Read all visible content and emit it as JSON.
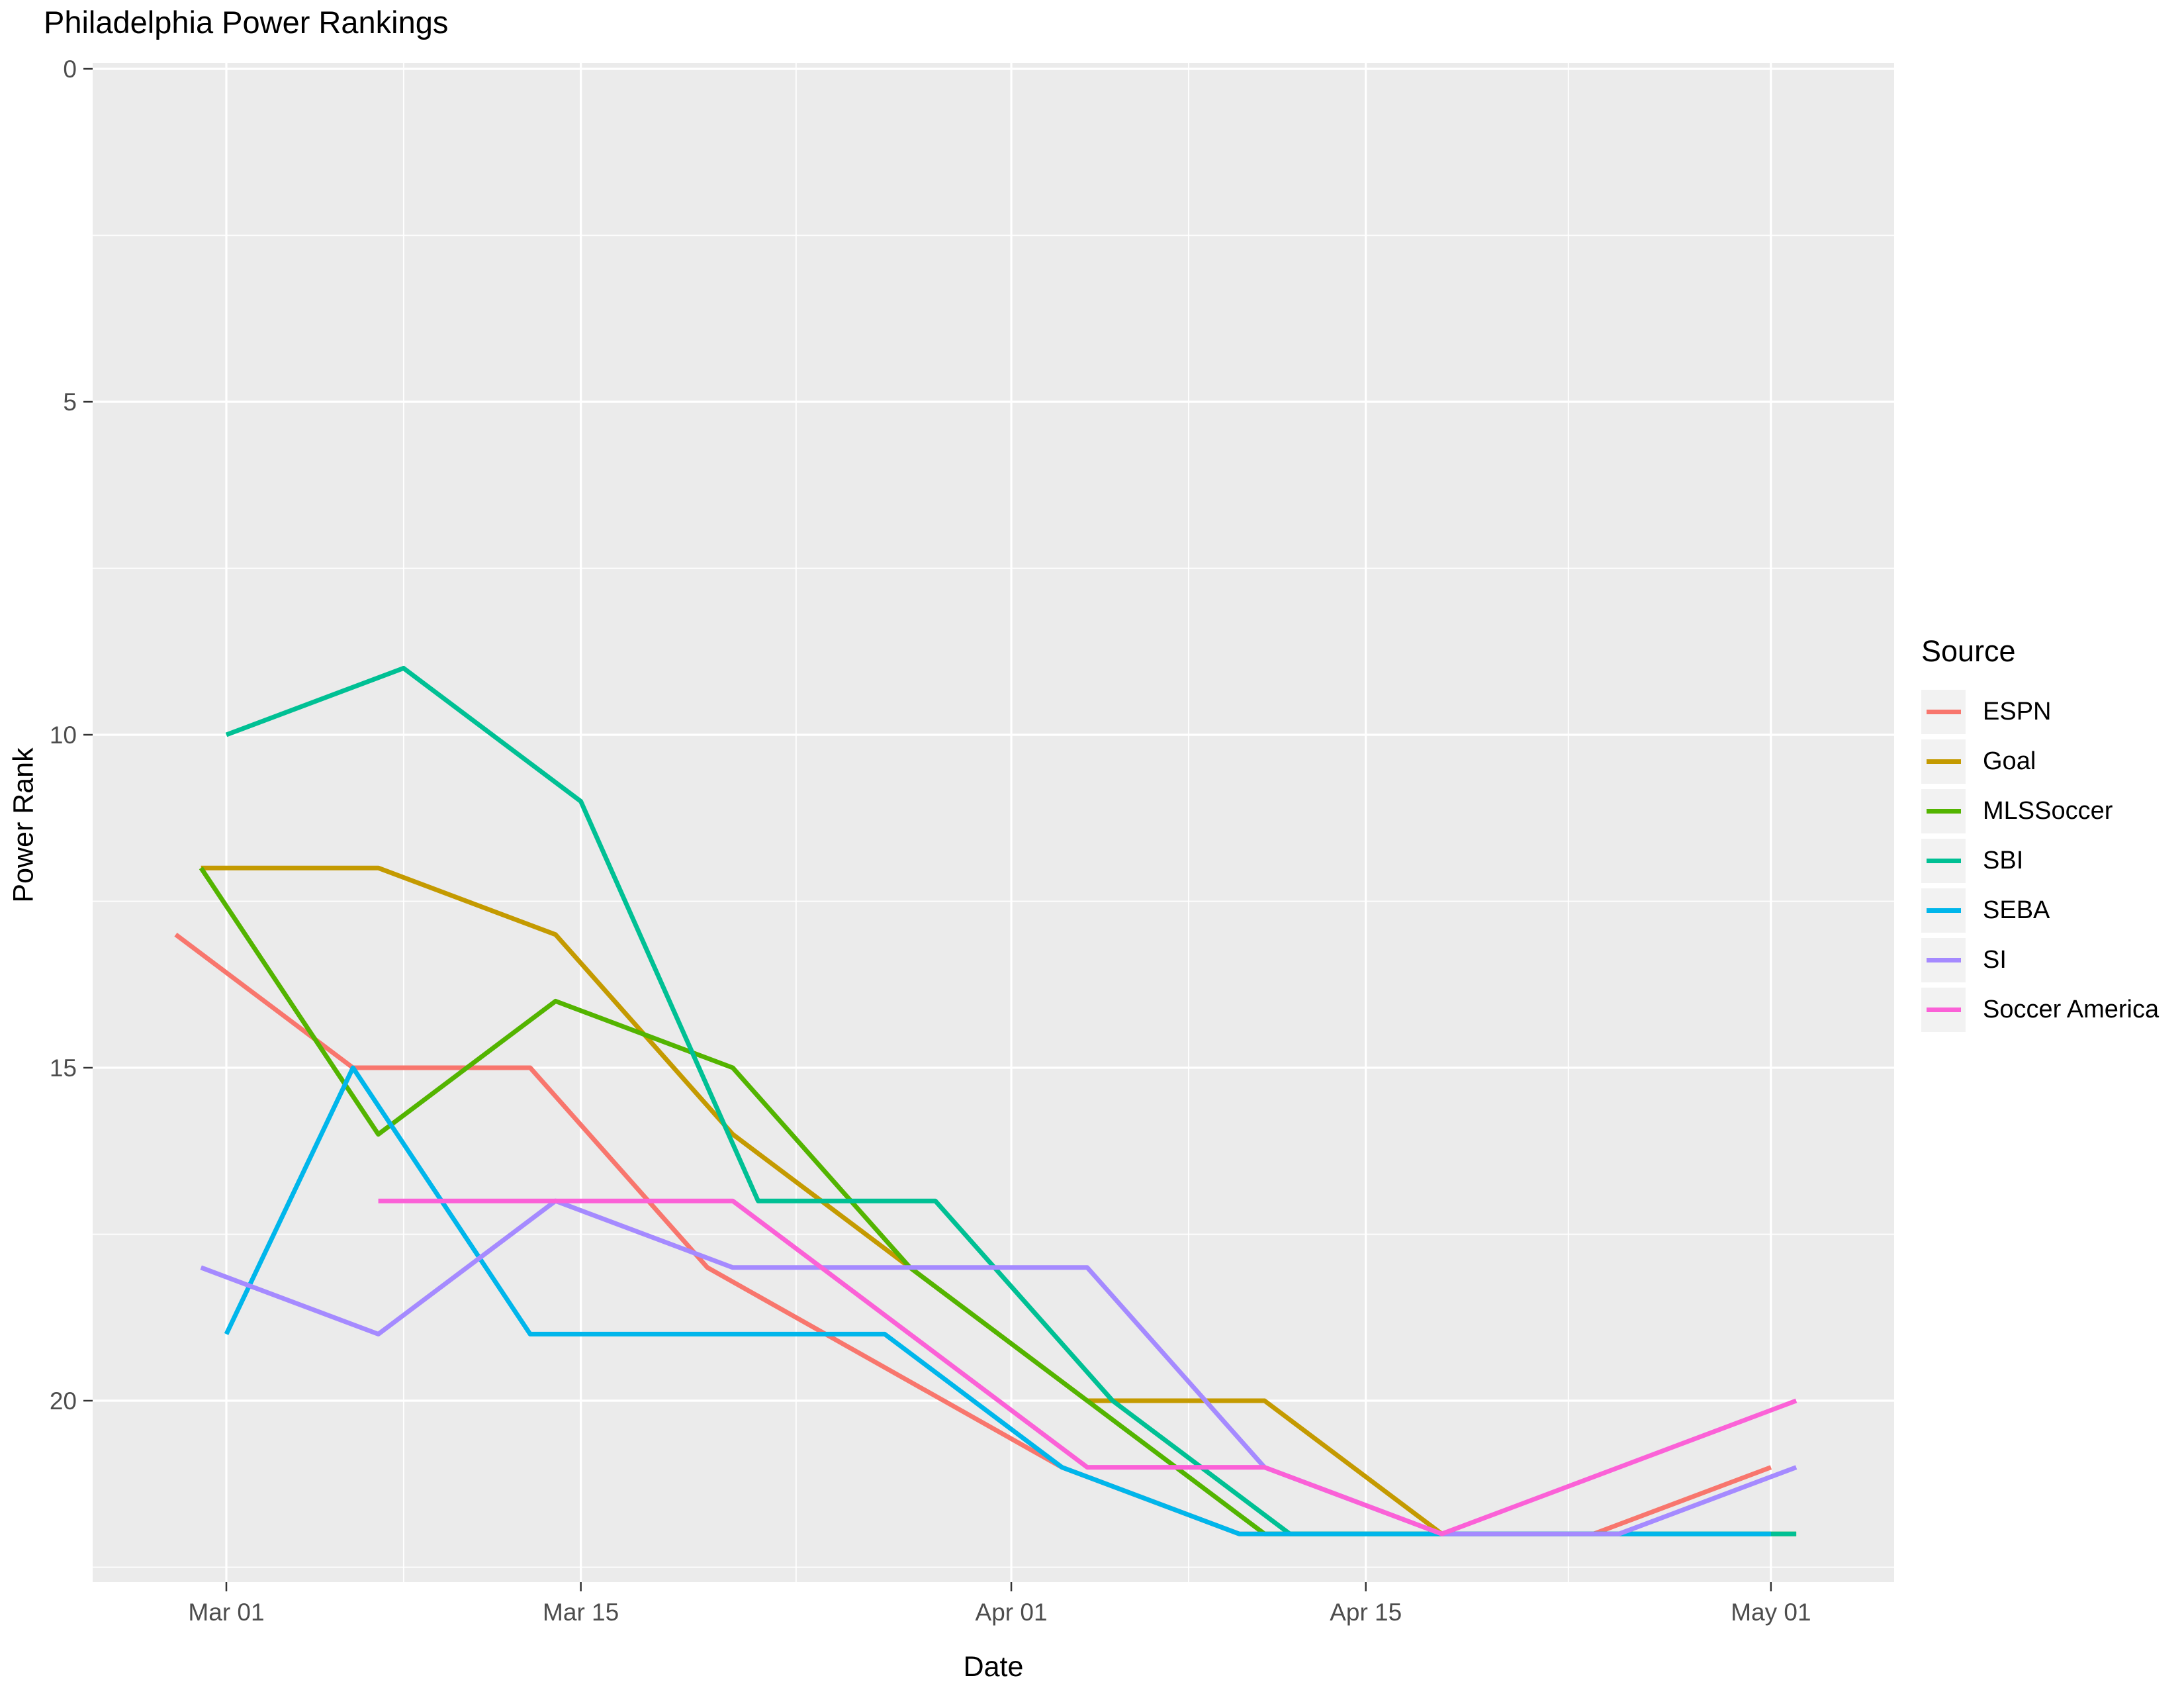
{
  "chart_data": {
    "type": "line",
    "title": "Philadelphia Power Rankings",
    "xlabel": "Date",
    "ylabel": "Power Rank",
    "grid": "on",
    "legend": {
      "title": "Source",
      "position": "right"
    },
    "x_axis": {
      "tick_labels": [
        "Mar 01",
        "Mar 15",
        "Apr 01",
        "Apr 15",
        "May 01"
      ],
      "tick_days": [
        0,
        14,
        31,
        45,
        61
      ],
      "minor_grid_days": [
        7,
        22.5,
        38,
        53
      ]
    },
    "y_axis": {
      "tick_labels": [
        "0",
        "5",
        "10",
        "15",
        "20"
      ],
      "tick_values": [
        0,
        5,
        10,
        15,
        20
      ],
      "minor_grid_values": [
        2.5,
        7.5,
        12.5,
        17.5,
        22.5
      ],
      "inverted": true,
      "data_range": [
        9,
        22
      ]
    },
    "series": [
      {
        "name": "ESPN",
        "color": "#F8766D",
        "points": [
          {
            "date": "Feb 27",
            "day": -2,
            "rank": 13
          },
          {
            "date": "Mar 06",
            "day": 5,
            "rank": 15
          },
          {
            "date": "Mar 13",
            "day": 12,
            "rank": 15
          },
          {
            "date": "Mar 20",
            "day": 19,
            "rank": 18
          },
          {
            "date": "Apr 03",
            "day": 33,
            "rank": 21
          },
          {
            "date": "Apr 10",
            "day": 40,
            "rank": 22
          },
          {
            "date": "Apr 17",
            "day": 47,
            "rank": 22
          },
          {
            "date": "Apr 24",
            "day": 54,
            "rank": 22
          },
          {
            "date": "May 01",
            "day": 61,
            "rank": 21
          }
        ]
      },
      {
        "name": "Goal",
        "color": "#C49A00",
        "points": [
          {
            "date": "Feb 28",
            "day": -1,
            "rank": 12
          },
          {
            "date": "Mar 07",
            "day": 6,
            "rank": 12
          },
          {
            "date": "Mar 14",
            "day": 13,
            "rank": 13
          },
          {
            "date": "Mar 21",
            "day": 20,
            "rank": 16
          },
          {
            "date": "Mar 28",
            "day": 27,
            "rank": 18
          },
          {
            "date": "Apr 04",
            "day": 34,
            "rank": 20
          },
          {
            "date": "Apr 11",
            "day": 41,
            "rank": 20
          },
          {
            "date": "Apr 18",
            "day": 48,
            "rank": 22
          }
        ]
      },
      {
        "name": "MLSSoccer",
        "color": "#53B400",
        "points": [
          {
            "date": "Feb 28",
            "day": -1,
            "rank": 12
          },
          {
            "date": "Mar 07",
            "day": 6,
            "rank": 16
          },
          {
            "date": "Mar 14",
            "day": 13,
            "rank": 14
          },
          {
            "date": "Mar 21",
            "day": 20,
            "rank": 15
          },
          {
            "date": "Mar 28",
            "day": 27,
            "rank": 18
          },
          {
            "date": "Apr 04",
            "day": 34,
            "rank": 20
          },
          {
            "date": "Apr 11",
            "day": 41,
            "rank": 22
          },
          {
            "date": "Apr 18",
            "day": 48,
            "rank": 22
          },
          {
            "date": "Apr 25",
            "day": 55,
            "rank": 22
          },
          {
            "date": "May 02",
            "day": 62,
            "rank": 22
          }
        ]
      },
      {
        "name": "SBI",
        "color": "#00C094",
        "points": [
          {
            "date": "Mar 01",
            "day": 0,
            "rank": 10
          },
          {
            "date": "Mar 08",
            "day": 7,
            "rank": 9
          },
          {
            "date": "Mar 15",
            "day": 14,
            "rank": 11
          },
          {
            "date": "Mar 22",
            "day": 21,
            "rank": 17
          },
          {
            "date": "Mar 29",
            "day": 28,
            "rank": 17
          },
          {
            "date": "Apr 05",
            "day": 35,
            "rank": 20
          },
          {
            "date": "Apr 12",
            "day": 42,
            "rank": 22
          },
          {
            "date": "Apr 19",
            "day": 49,
            "rank": 22
          },
          {
            "date": "Apr 26",
            "day": 56,
            "rank": 22
          },
          {
            "date": "May 02",
            "day": 62,
            "rank": 22
          }
        ]
      },
      {
        "name": "SEBA",
        "color": "#00B6EB",
        "points": [
          {
            "date": "Mar 01",
            "day": 0,
            "rank": 19
          },
          {
            "date": "Mar 06",
            "day": 5,
            "rank": 15
          },
          {
            "date": "Mar 13",
            "day": 12,
            "rank": 19
          },
          {
            "date": "Mar 20",
            "day": 19,
            "rank": 19
          },
          {
            "date": "Mar 27",
            "day": 26,
            "rank": 19
          },
          {
            "date": "Apr 03",
            "day": 33,
            "rank": 21
          },
          {
            "date": "Apr 10",
            "day": 40,
            "rank": 22
          },
          {
            "date": "Apr 17",
            "day": 47,
            "rank": 22
          },
          {
            "date": "Apr 24",
            "day": 54,
            "rank": 22
          },
          {
            "date": "May 01",
            "day": 61,
            "rank": 22
          }
        ]
      },
      {
        "name": "SI",
        "color": "#A58AFF",
        "points": [
          {
            "date": "Feb 28",
            "day": -1,
            "rank": 18
          },
          {
            "date": "Mar 07",
            "day": 6,
            "rank": 19
          },
          {
            "date": "Mar 14",
            "day": 13,
            "rank": 17
          },
          {
            "date": "Mar 21",
            "day": 20,
            "rank": 18
          },
          {
            "date": "Mar 28",
            "day": 27,
            "rank": 18
          },
          {
            "date": "Apr 04",
            "day": 34,
            "rank": 18
          },
          {
            "date": "Apr 11",
            "day": 41,
            "rank": 21
          },
          {
            "date": "Apr 18",
            "day": 48,
            "rank": 22
          },
          {
            "date": "Apr 25",
            "day": 55,
            "rank": 22
          },
          {
            "date": "May 02",
            "day": 62,
            "rank": 21
          }
        ]
      },
      {
        "name": "Soccer America",
        "color": "#FB61D7",
        "points": [
          {
            "date": "Mar 07",
            "day": 6,
            "rank": 17
          },
          {
            "date": "Mar 14",
            "day": 13,
            "rank": 17
          },
          {
            "date": "Mar 21",
            "day": 20,
            "rank": 17
          },
          {
            "date": "Mar 28",
            "day": 27,
            "rank": 19
          },
          {
            "date": "Apr 04",
            "day": 34,
            "rank": 21
          },
          {
            "date": "Apr 11",
            "day": 41,
            "rank": 21
          },
          {
            "date": "Apr 18",
            "day": 48,
            "rank": 22
          },
          {
            "date": "Apr 25",
            "day": 55,
            "rank": 21
          },
          {
            "date": "May 02",
            "day": 62,
            "rank": 20
          }
        ]
      }
    ]
  },
  "colors": {
    "background": "#FFFFFF",
    "panel": "#EBEBEB",
    "gridline": "#FFFFFF",
    "axis_text": "#4D4D4D",
    "tick_mark": "#333333",
    "title_text": "#000000",
    "legend_key_fill": "#F2F2F2"
  }
}
